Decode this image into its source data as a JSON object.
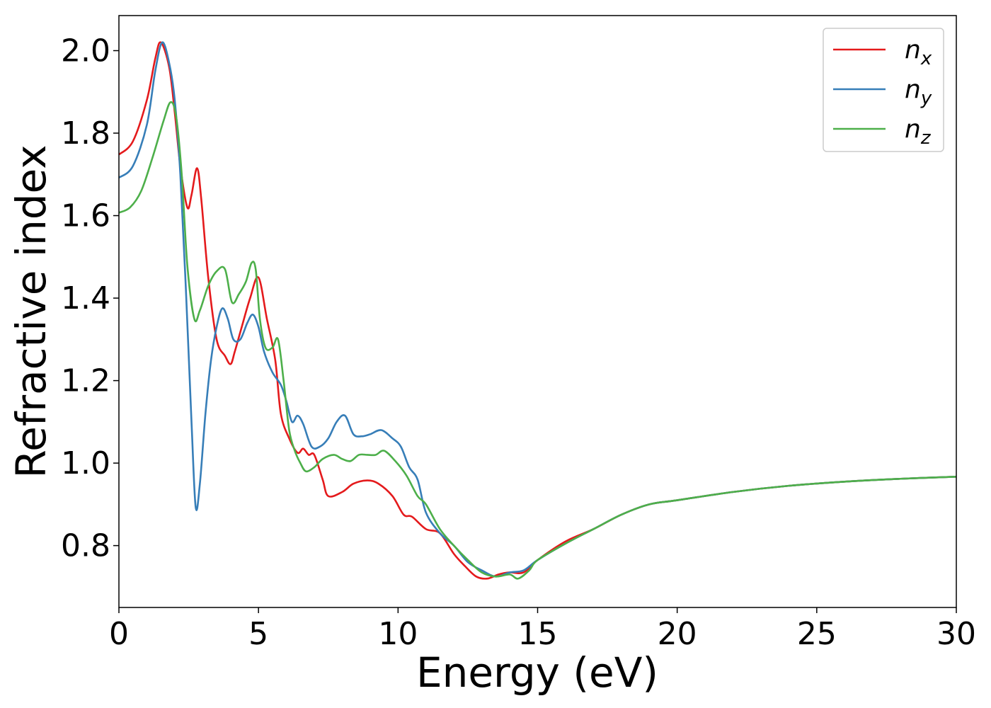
{
  "chart_data": {
    "type": "line",
    "title": "",
    "xlabel": "Energy (eV)",
    "ylabel": "Refractive index",
    "xlim": [
      0,
      30
    ],
    "ylim": [
      0.65,
      2.085
    ],
    "xticks": [
      "0",
      "5",
      "10",
      "15",
      "20",
      "25",
      "30"
    ],
    "xtick_values": [
      0,
      5,
      10,
      15,
      20,
      25,
      30
    ],
    "yticks": [
      "0.8",
      "1.0",
      "1.2",
      "1.4",
      "1.6",
      "1.8",
      "2.0"
    ],
    "ytick_values": [
      0.8,
      1.0,
      1.2,
      1.4,
      1.6,
      1.8,
      2.0
    ],
    "grid": false,
    "legend_position": "top-right",
    "series": [
      {
        "name": "n_x",
        "legend_base": "n",
        "legend_sub": "x",
        "color": "#e41a1c",
        "x": [
          0,
          0.5,
          1.0,
          1.3,
          1.5,
          1.8,
          2.0,
          2.2,
          2.45,
          2.6,
          2.8,
          2.95,
          3.2,
          3.5,
          3.8,
          4.0,
          4.15,
          4.4,
          4.7,
          5.0,
          5.3,
          5.6,
          5.8,
          6.1,
          6.4,
          6.6,
          6.8,
          7.0,
          7.3,
          7.5,
          8.0,
          8.4,
          8.9,
          9.3,
          9.8,
          10.2,
          10.5,
          11.0,
          11.5,
          12.0,
          12.4,
          12.8,
          13.2,
          13.6,
          14.0,
          14.5,
          15.0,
          16.0,
          17.0,
          18.0,
          19.0,
          20.0,
          22.0,
          24.0,
          26.0,
          28.0,
          30.0
        ],
        "y": [
          1.748,
          1.78,
          1.88,
          1.98,
          2.02,
          1.96,
          1.85,
          1.72,
          1.62,
          1.65,
          1.715,
          1.64,
          1.45,
          1.3,
          1.26,
          1.24,
          1.27,
          1.33,
          1.4,
          1.45,
          1.35,
          1.25,
          1.12,
          1.06,
          1.025,
          1.035,
          1.02,
          1.02,
          0.96,
          0.92,
          0.93,
          0.95,
          0.958,
          0.95,
          0.92,
          0.875,
          0.87,
          0.84,
          0.83,
          0.78,
          0.75,
          0.725,
          0.72,
          0.73,
          0.735,
          0.735,
          0.765,
          0.81,
          0.84,
          0.875,
          0.9,
          0.91,
          0.93,
          0.945,
          0.955,
          0.962,
          0.967
        ]
      },
      {
        "name": "n_y",
        "legend_base": "n",
        "legend_sub": "y",
        "color": "#377eb8",
        "x": [
          0,
          0.5,
          1.0,
          1.3,
          1.55,
          1.8,
          2.0,
          2.2,
          2.4,
          2.6,
          2.75,
          2.9,
          3.1,
          3.3,
          3.5,
          3.7,
          3.9,
          4.1,
          4.35,
          4.6,
          4.8,
          5.0,
          5.2,
          5.5,
          5.8,
          6.0,
          6.2,
          6.4,
          6.6,
          6.9,
          7.2,
          7.5,
          7.8,
          8.1,
          8.4,
          8.7,
          9.0,
          9.4,
          9.8,
          10.1,
          10.4,
          10.7,
          11.0,
          11.5,
          12.0,
          12.5,
          13.0,
          13.5,
          14.0,
          14.5,
          15.0,
          16.0,
          17.0,
          18.0,
          19.0,
          20.0,
          22.0,
          24.0,
          26.0,
          28.0,
          30.0
        ],
        "y": [
          1.692,
          1.72,
          1.82,
          1.95,
          2.02,
          1.97,
          1.88,
          1.7,
          1.42,
          1.1,
          0.893,
          0.95,
          1.12,
          1.25,
          1.33,
          1.375,
          1.35,
          1.3,
          1.3,
          1.34,
          1.36,
          1.33,
          1.27,
          1.22,
          1.19,
          1.15,
          1.1,
          1.115,
          1.095,
          1.04,
          1.04,
          1.06,
          1.1,
          1.115,
          1.07,
          1.065,
          1.07,
          1.08,
          1.06,
          1.04,
          0.99,
          0.96,
          0.88,
          0.83,
          0.8,
          0.76,
          0.74,
          0.725,
          0.735,
          0.74,
          0.765,
          0.805,
          0.84,
          0.875,
          0.9,
          0.91,
          0.93,
          0.945,
          0.955,
          0.962,
          0.967
        ]
      },
      {
        "name": "n_z",
        "legend_base": "n",
        "legend_sub": "z",
        "color": "#4daf4a",
        "x": [
          0,
          0.4,
          0.8,
          1.2,
          1.6,
          1.85,
          2.05,
          2.25,
          2.45,
          2.7,
          2.9,
          3.2,
          3.5,
          3.8,
          4.05,
          4.3,
          4.55,
          4.75,
          4.9,
          5.05,
          5.25,
          5.5,
          5.7,
          5.9,
          6.1,
          6.3,
          6.5,
          6.7,
          7.0,
          7.3,
          7.7,
          8.0,
          8.3,
          8.6,
          8.9,
          9.2,
          9.5,
          9.9,
          10.3,
          10.7,
          11.0,
          11.5,
          12.0,
          12.5,
          13.0,
          13.5,
          14.0,
          14.3,
          14.7,
          15.0,
          16.0,
          17.0,
          18.0,
          19.0,
          20.0,
          22.0,
          24.0,
          26.0,
          28.0,
          30.0
        ],
        "y": [
          1.607,
          1.62,
          1.66,
          1.74,
          1.83,
          1.875,
          1.84,
          1.7,
          1.48,
          1.35,
          1.37,
          1.43,
          1.465,
          1.47,
          1.39,
          1.41,
          1.44,
          1.485,
          1.47,
          1.35,
          1.28,
          1.28,
          1.3,
          1.2,
          1.08,
          1.03,
          1.0,
          0.98,
          0.99,
          1.01,
          1.02,
          1.01,
          1.005,
          1.02,
          1.02,
          1.02,
          1.03,
          1.005,
          0.97,
          0.92,
          0.9,
          0.84,
          0.8,
          0.765,
          0.735,
          0.725,
          0.73,
          0.72,
          0.74,
          0.765,
          0.805,
          0.84,
          0.875,
          0.9,
          0.91,
          0.93,
          0.945,
          0.955,
          0.962,
          0.967
        ]
      }
    ]
  }
}
